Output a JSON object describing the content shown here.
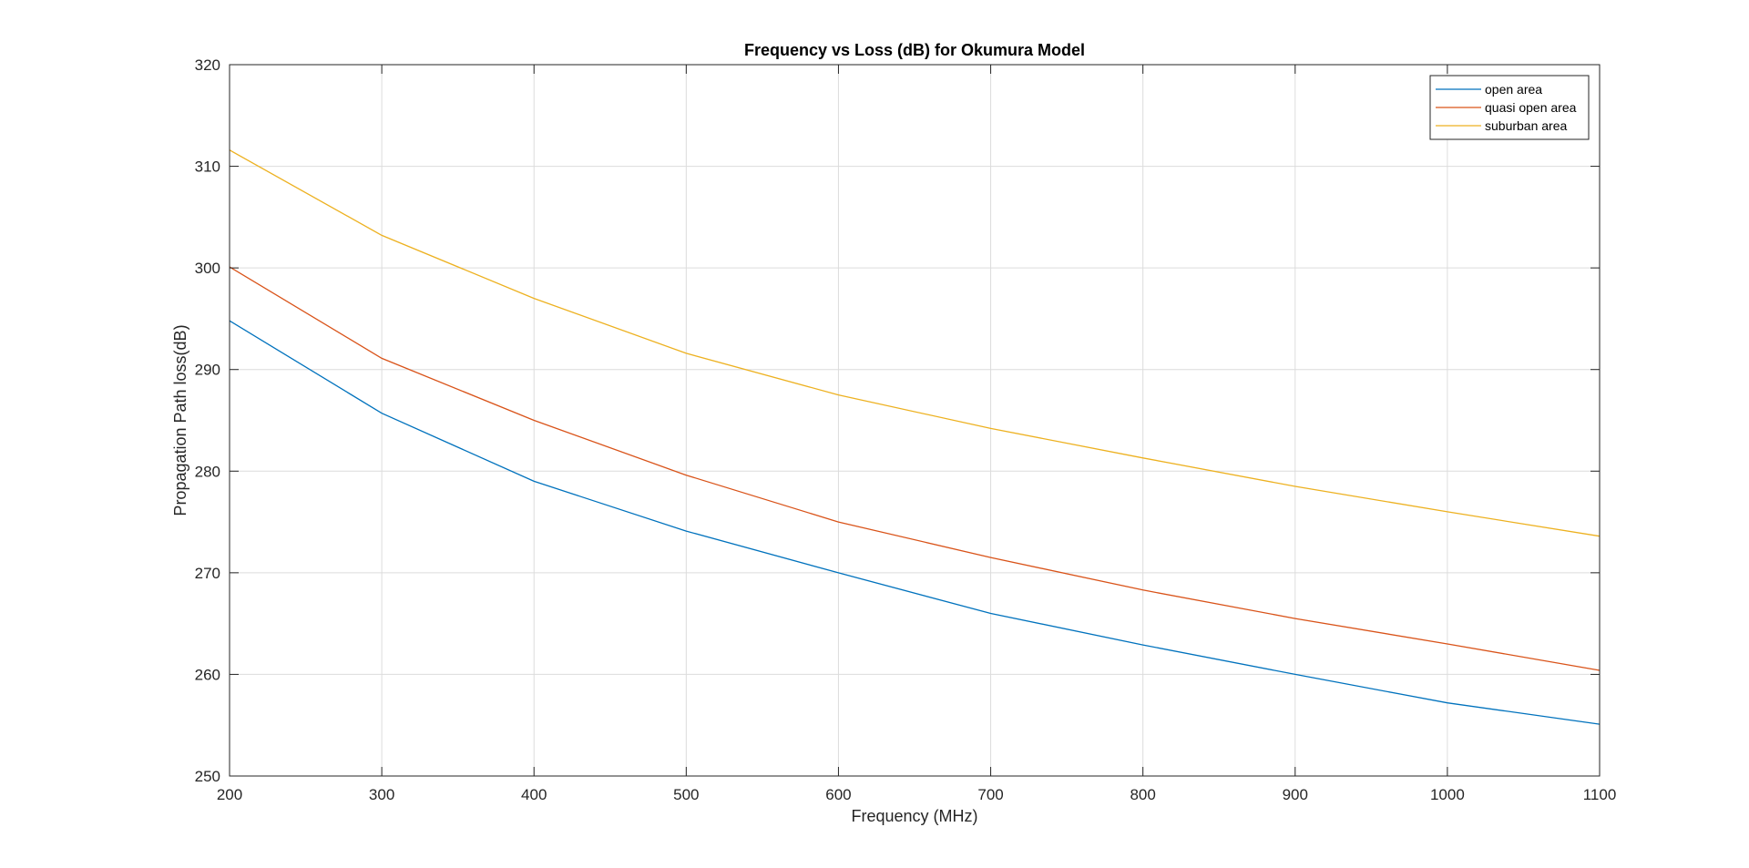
{
  "chart_data": {
    "type": "line",
    "title": "Frequency vs Loss (dB) for Okumura Model",
    "xlabel": "Frequency (MHz)",
    "ylabel": "Propagation Path loss(dB)",
    "x": [
      200,
      300,
      400,
      500,
      600,
      700,
      800,
      900,
      1000,
      1100
    ],
    "xlim": [
      200,
      1100
    ],
    "ylim": [
      250,
      320
    ],
    "xticks": [
      "200",
      "300",
      "400",
      "500",
      "600",
      "700",
      "800",
      "900",
      "1000",
      "1100"
    ],
    "yticks": [
      "250",
      "260",
      "270",
      "280",
      "290",
      "300",
      "310",
      "320"
    ],
    "grid": true,
    "legend_position": "top-right",
    "series": [
      {
        "name": "open area",
        "color": "#0072BD",
        "values": [
          294.8,
          285.7,
          279.0,
          274.1,
          270.0,
          266.0,
          262.9,
          260.0,
          257.2,
          255.1
        ]
      },
      {
        "name": "quasi open area",
        "color": "#D95319",
        "values": [
          300.1,
          291.1,
          285.0,
          279.6,
          275.0,
          271.5,
          268.3,
          265.5,
          263.0,
          260.4
        ]
      },
      {
        "name": "suburban area",
        "color": "#EDB120",
        "values": [
          311.6,
          303.2,
          297.0,
          291.6,
          287.5,
          284.2,
          281.3,
          278.5,
          276.0,
          273.6
        ]
      }
    ]
  }
}
